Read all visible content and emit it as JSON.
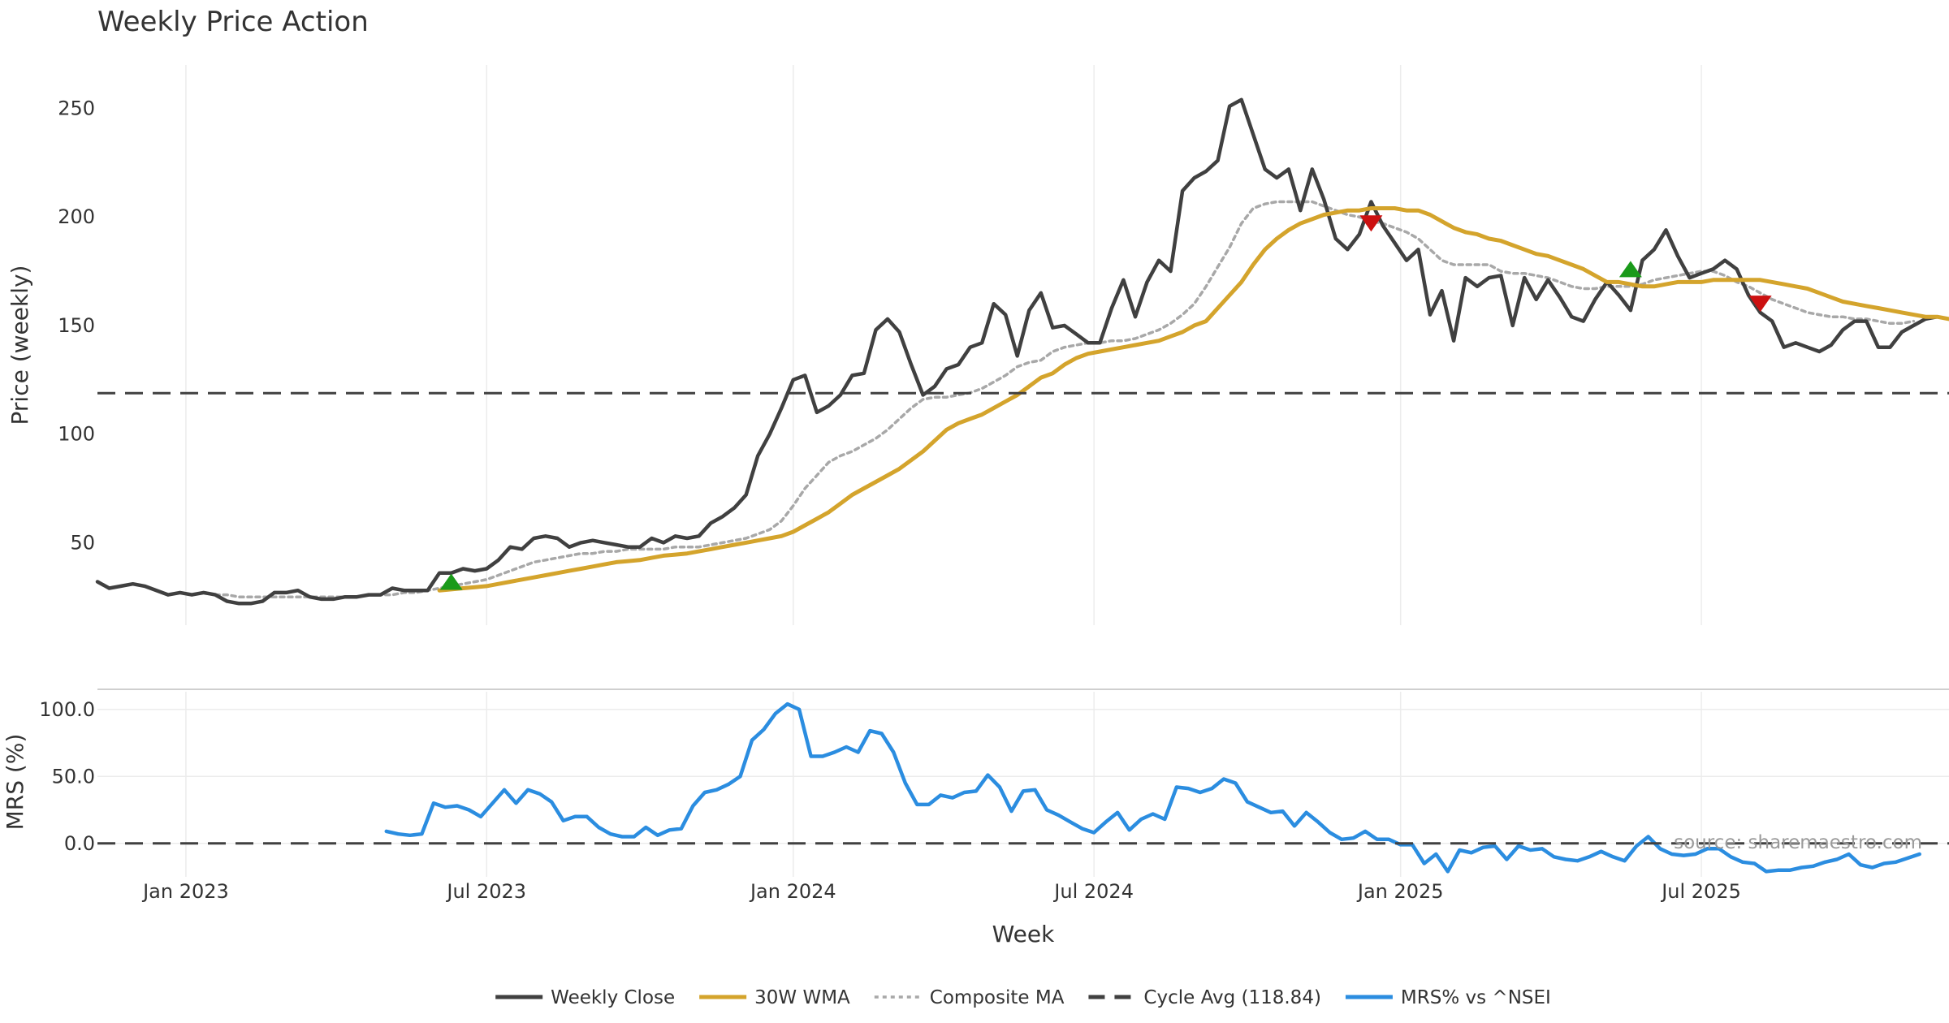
{
  "chart_data": [
    {
      "type": "line",
      "title": "Weekly Price Action",
      "ylabel": "Price (weekly)",
      "ylim": [
        12,
        270
      ],
      "yticks": [
        50,
        100,
        150,
        200,
        250
      ],
      "grid": "vertical",
      "series": [
        {
          "name": "Weekly Close",
          "color": "#404040",
          "style": "solid",
          "start_week": 0,
          "values": [
            32,
            29,
            30,
            31,
            30,
            28,
            26,
            27,
            26,
            27,
            26,
            23,
            22,
            22,
            23,
            27,
            27,
            28,
            25,
            24,
            24,
            25,
            25,
            26,
            26,
            29,
            28,
            28,
            28,
            36,
            36,
            38,
            37,
            38,
            42,
            48,
            47,
            52,
            53,
            52,
            48,
            50,
            51,
            50,
            49,
            48,
            48,
            52,
            50,
            53,
            52,
            53,
            59,
            62,
            66,
            72,
            90,
            100,
            112,
            125,
            127,
            110,
            113,
            118,
            127,
            128,
            148,
            153,
            147,
            132,
            118,
            122,
            130,
            132,
            140,
            142,
            160,
            155,
            136,
            157,
            165,
            149,
            150,
            146,
            142,
            142,
            158,
            171,
            154,
            170,
            180,
            175,
            212,
            218,
            221,
            226,
            251,
            254,
            238,
            222,
            218,
            222,
            203,
            222,
            208,
            190,
            185,
            192,
            207,
            196,
            188,
            180,
            185,
            155,
            166,
            143,
            172,
            168,
            172,
            173,
            150,
            172,
            162,
            171,
            163,
            154,
            152,
            162,
            170,
            164,
            157,
            180,
            185,
            194,
            182,
            172,
            174,
            176,
            180,
            176,
            164,
            156,
            152,
            140,
            142,
            140,
            138,
            141,
            148,
            152,
            152,
            140,
            140,
            147,
            150,
            153,
            154
          ]
        },
        {
          "name": "30W WMA",
          "color": "#d4a42c",
          "style": "solid",
          "start_week": 29,
          "values": [
            28,
            28.5,
            29,
            29.5,
            30,
            31,
            32,
            33,
            34,
            35,
            36,
            37,
            38,
            39,
            40,
            41,
            41.5,
            42,
            43,
            44,
            44.5,
            45,
            46,
            47,
            48,
            49,
            50,
            51,
            52,
            53,
            55,
            58,
            61,
            64,
            68,
            72,
            75,
            78,
            81,
            84,
            88,
            92,
            97,
            102,
            105,
            107,
            109,
            112,
            115,
            118,
            122,
            126,
            128,
            132,
            135,
            137,
            138,
            139,
            140,
            141,
            142,
            143,
            145,
            147,
            150,
            152,
            158,
            164,
            170,
            178,
            185,
            190,
            194,
            197,
            199,
            201,
            202,
            203,
            203,
            204,
            204,
            204,
            203,
            203,
            201,
            198,
            195,
            193,
            192,
            190,
            189,
            187,
            185,
            183,
            182,
            180,
            178,
            176,
            173,
            170,
            170,
            169,
            168,
            168,
            169,
            170,
            170,
            170,
            171,
            171,
            171,
            171,
            171,
            170,
            169,
            168,
            167,
            165,
            163,
            161,
            160,
            159,
            158,
            157,
            156,
            155,
            154,
            154,
            153
          ]
        },
        {
          "name": "Composite MA",
          "color": "#a8a8a8",
          "style": "dotted",
          "start_week": 10,
          "values": [
            26,
            26,
            25,
            25,
            25,
            25,
            25,
            25,
            25,
            25,
            25,
            25,
            25,
            26,
            26,
            26,
            27,
            27,
            28,
            29,
            30,
            31,
            32,
            33,
            35,
            37,
            39,
            41,
            42,
            43,
            44,
            45,
            45,
            46,
            46,
            47,
            47,
            47,
            47,
            48,
            48,
            48,
            49,
            50,
            51,
            52,
            54,
            56,
            60,
            67,
            75,
            81,
            87,
            90,
            92,
            95,
            98,
            102,
            107,
            112,
            116,
            117,
            117,
            118,
            119,
            121,
            124,
            127,
            131,
            133,
            134,
            138,
            140,
            141,
            142,
            142,
            143,
            143,
            144,
            146,
            148,
            151,
            155,
            160,
            168,
            177,
            186,
            197,
            204,
            206,
            207,
            207,
            207,
            207,
            205,
            203,
            201,
            200,
            198,
            197,
            195,
            193,
            190,
            185,
            180,
            178,
            178,
            178,
            178,
            175,
            174,
            174,
            173,
            172,
            170,
            168,
            167,
            167,
            168,
            168,
            168,
            169,
            171,
            172,
            173,
            174,
            175,
            175,
            173,
            170,
            168,
            165,
            162,
            160,
            158,
            156,
            155,
            154,
            154,
            153,
            153,
            152,
            151,
            151,
            152
          ]
        },
        {
          "name": "Cycle Avg (118.84)",
          "color": "#404040",
          "style": "dashed",
          "constant": 118.84
        }
      ],
      "markers": [
        {
          "type": "buy",
          "week": 30,
          "value": 32,
          "color": "#1a9a1a"
        },
        {
          "type": "sell",
          "week": 108,
          "value": 197,
          "color": "#cc1111"
        },
        {
          "type": "buy",
          "week": 130,
          "value": 176,
          "color": "#1a9a1a"
        },
        {
          "type": "sell",
          "week": 141,
          "value": 160,
          "color": "#cc1111"
        }
      ]
    },
    {
      "type": "line",
      "ylabel": "MRS (%)",
      "xlabel": "Week",
      "ylim": [
        -25,
        115
      ],
      "yticks": [
        "100.0",
        "50.0",
        "0.0"
      ],
      "ytick_values": [
        100,
        50,
        0
      ],
      "xticks": [
        {
          "label": "Jan 2023",
          "week": 7.5
        },
        {
          "label": "Jul 2023",
          "week": 33
        },
        {
          "label": "Jan 2024",
          "week": 59
        },
        {
          "label": "Jul 2024",
          "week": 84.5
        },
        {
          "label": "Jan 2025",
          "week": 110.5
        },
        {
          "label": "Jul 2025",
          "week": 136
        }
      ],
      "series": [
        {
          "name": "MRS% vs ^NSEI",
          "color": "#2b8de0",
          "style": "solid",
          "start_week": 24.5,
          "values": [
            9,
            7,
            6,
            7,
            30,
            27,
            28,
            25,
            20,
            30,
            40,
            30,
            40,
            37,
            31,
            17,
            20,
            20,
            12,
            7,
            5,
            5,
            12,
            6,
            10,
            11,
            28,
            38,
            40,
            44,
            50,
            77,
            85,
            97,
            104,
            100,
            65,
            65,
            68,
            72,
            68,
            84,
            82,
            68,
            45,
            29,
            29,
            36,
            34,
            38,
            39,
            51,
            42,
            24,
            39,
            40,
            25,
            21,
            16,
            11,
            8,
            16,
            23,
            10,
            18,
            22,
            18,
            42,
            41,
            38,
            41,
            48,
            45,
            31,
            27,
            23,
            24,
            13,
            23,
            16,
            8,
            3,
            4,
            9,
            3,
            3,
            -1,
            -1,
            -15,
            -8,
            -21,
            -5,
            -7,
            -3,
            -2,
            -12,
            -2,
            -5,
            -4,
            -10,
            -12,
            -13,
            -10,
            -6,
            -10,
            -13,
            -2,
            5,
            -4,
            -8,
            -9,
            -8,
            -4,
            -4,
            -10,
            -14,
            -15,
            -21,
            -20,
            -20,
            -18,
            -17,
            -14,
            -12,
            -8,
            -16,
            -18,
            -15,
            -14,
            -11,
            -8
          ]
        },
        {
          "name": "zero line",
          "color": "#404040",
          "style": "dashed",
          "constant": 0
        }
      ],
      "annotation": "source: sharemaestro.com"
    }
  ],
  "legend": {
    "placement": "bottom-center",
    "items": [
      {
        "label": "Weekly Close",
        "color": "#404040",
        "style": "solid"
      },
      {
        "label": "30W WMA",
        "color": "#d4a42c",
        "style": "solid"
      },
      {
        "label": "Composite MA",
        "color": "#a8a8a8",
        "style": "dotted"
      },
      {
        "label": "Cycle Avg (118.84)",
        "color": "#404040",
        "style": "dashed"
      },
      {
        "label": "MRS% vs ^NSEI",
        "color": "#2b8de0",
        "style": "solid"
      }
    ]
  }
}
